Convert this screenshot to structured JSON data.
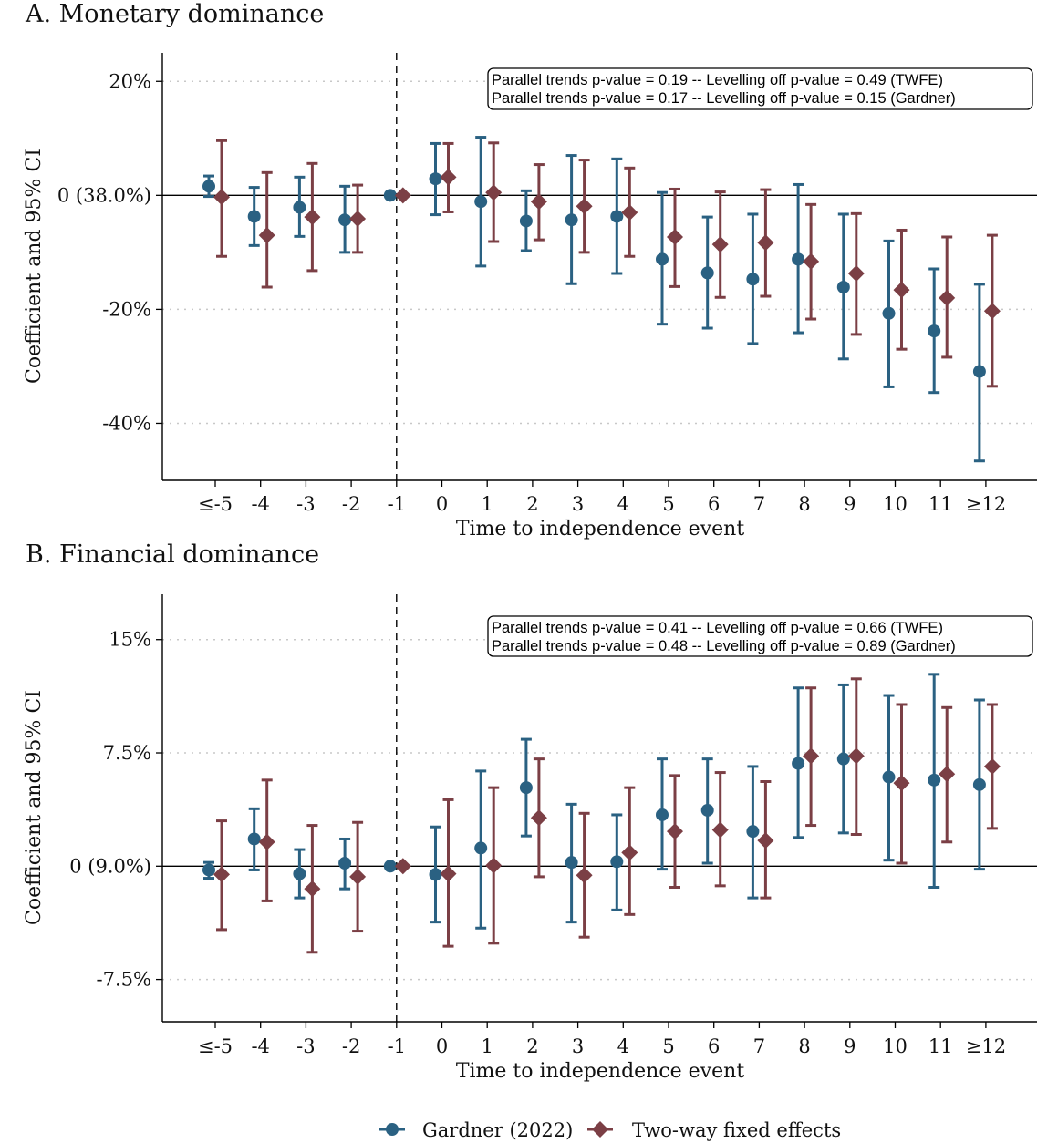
{
  "chart_data": [
    {
      "type": "scatter",
      "subtype": "event-study coefficient plot with 95% CI error bars",
      "title": "A. Monetary dominance",
      "xlabel": "Time to independence event",
      "ylabel": "Coefficient and 95% CI",
      "categories": [
        "≤-5",
        "-4",
        "-3",
        "-2",
        "-1",
        "0",
        "1",
        "2",
        "3",
        "4",
        "5",
        "6",
        "7",
        "8",
        "9",
        "10",
        "11",
        "≥12"
      ],
      "yticks": [
        20,
        0,
        -20,
        -40
      ],
      "ytick_labels": [
        "20%",
        "0 (38.0%)",
        "-20%",
        "-40%"
      ],
      "ylim": [
        -50,
        25
      ],
      "reference_line_x": "-1",
      "grid": "horizontal dotted",
      "annotation": [
        "Parallel trends p-value = 0.19 -- Levelling off p-value = 0.49 (TWFE)",
        "Parallel trends p-value = 0.17 -- Levelling off p-value = 0.15 (Gardner)"
      ],
      "series": [
        {
          "name": "Gardner (2022)",
          "marker": "circle",
          "color": "#2a6182",
          "values": [
            1.6,
            -3.7,
            -2.1,
            -4.3,
            0,
            2.9,
            -1.1,
            -4.5,
            -4.3,
            -3.7,
            -11.2,
            -13.6,
            -14.7,
            -11.2,
            -16.1,
            -20.7,
            -23.8,
            -30.9
          ],
          "ci_upper": [
            3.4,
            1.4,
            3.2,
            1.6,
            null,
            9.1,
            10.2,
            0.8,
            7.0,
            6.4,
            0.5,
            -3.8,
            -3.3,
            1.9,
            -3.3,
            -8.0,
            -12.9,
            -15.6
          ],
          "ci_lower": [
            -0.2,
            -8.8,
            -7.2,
            -10.0,
            null,
            -3.4,
            -12.4,
            -9.7,
            -15.5,
            -13.7,
            -22.6,
            -23.3,
            -26.0,
            -24.1,
            -28.7,
            -33.6,
            -34.6,
            -46.6
          ]
        },
        {
          "name": "Two-way fixed effects",
          "marker": "diamond",
          "color": "#7b3f45",
          "values": [
            -0.3,
            -7.0,
            -3.8,
            -4.1,
            0,
            3.2,
            0.5,
            -1.1,
            -1.9,
            -3.0,
            -7.3,
            -8.6,
            -8.3,
            -11.6,
            -13.7,
            -16.6,
            -18.0,
            -20.3
          ],
          "ci_upper": [
            9.6,
            4.0,
            5.6,
            1.8,
            null,
            9.1,
            9.2,
            5.4,
            6.2,
            4.8,
            1.1,
            0.6,
            1.0,
            -1.6,
            -3.2,
            -6.1,
            -7.3,
            -7.0
          ],
          "ci_lower": [
            -10.7,
            -16.1,
            -13.2,
            -10.0,
            null,
            -2.9,
            -8.1,
            -7.8,
            -10.0,
            -10.7,
            -16.0,
            -17.9,
            -17.7,
            -21.7,
            -24.4,
            -27.0,
            -28.4,
            -33.5
          ]
        }
      ]
    },
    {
      "type": "scatter",
      "subtype": "event-study coefficient plot with 95% CI error bars",
      "title": "B. Financial dominance",
      "xlabel": "Time to independence event",
      "ylabel": "Coefficient and 95% CI",
      "categories": [
        "≤-5",
        "-4",
        "-3",
        "-2",
        "-1",
        "0",
        "1",
        "2",
        "3",
        "4",
        "5",
        "6",
        "7",
        "8",
        "9",
        "10",
        "11",
        "≥12"
      ],
      "yticks": [
        15,
        7.5,
        0,
        -7.5
      ],
      "ytick_labels": [
        "15%",
        "7.5%",
        "0 (9.0%)",
        "-7.5%"
      ],
      "ylim": [
        -10.3,
        18
      ],
      "reference_line_x": "-1",
      "grid": "horizontal dotted",
      "annotation": [
        "Parallel trends p-value = 0.41 -- Levelling off p-value = 0.66 (TWFE)",
        "Parallel trends p-value = 0.48 -- Levelling off p-value = 0.89 (Gardner)"
      ],
      "series": [
        {
          "name": "Gardner (2022)",
          "marker": "circle",
          "color": "#2a6182",
          "values": [
            -0.25,
            1.8,
            -0.5,
            0.2,
            0,
            -0.55,
            1.2,
            5.2,
            0.25,
            0.3,
            3.4,
            3.7,
            2.3,
            6.8,
            7.1,
            5.9,
            5.7,
            5.4
          ],
          "ci_upper": [
            0.25,
            3.8,
            1.1,
            1.8,
            null,
            2.6,
            6.3,
            8.4,
            4.1,
            3.4,
            7.1,
            7.1,
            6.6,
            11.8,
            12.0,
            11.3,
            12.7,
            11.0
          ],
          "ci_lower": [
            -0.8,
            -0.25,
            -2.1,
            -1.5,
            null,
            -3.7,
            -4.1,
            2.0,
            -3.7,
            -2.9,
            -0.2,
            0.2,
            -2.1,
            1.9,
            2.2,
            0.4,
            -1.4,
            -0.2
          ]
        },
        {
          "name": "Two-way fixed effects",
          "marker": "diamond",
          "color": "#7b3f45",
          "values": [
            -0.55,
            1.6,
            -1.5,
            -0.7,
            0,
            -0.5,
            0.05,
            3.2,
            -0.6,
            0.9,
            2.3,
            2.4,
            1.7,
            7.3,
            7.3,
            5.5,
            6.1,
            6.6
          ],
          "ci_upper": [
            3.0,
            5.7,
            2.7,
            2.9,
            null,
            4.4,
            5.2,
            7.1,
            3.5,
            5.2,
            6.0,
            6.2,
            5.6,
            11.8,
            12.4,
            10.7,
            10.5,
            10.7
          ],
          "ci_lower": [
            -4.2,
            -2.3,
            -5.7,
            -4.3,
            null,
            -5.3,
            -5.1,
            -0.7,
            -4.7,
            -3.2,
            -1.4,
            -1.3,
            -2.1,
            2.7,
            2.1,
            0.2,
            1.6,
            2.5
          ]
        }
      ]
    }
  ],
  "legend": {
    "items": [
      {
        "label": "Gardner (2022)",
        "marker": "circle",
        "color": "#2a6182"
      },
      {
        "label": "Two-way fixed effects",
        "marker": "diamond",
        "color": "#7b3f45"
      }
    ]
  }
}
